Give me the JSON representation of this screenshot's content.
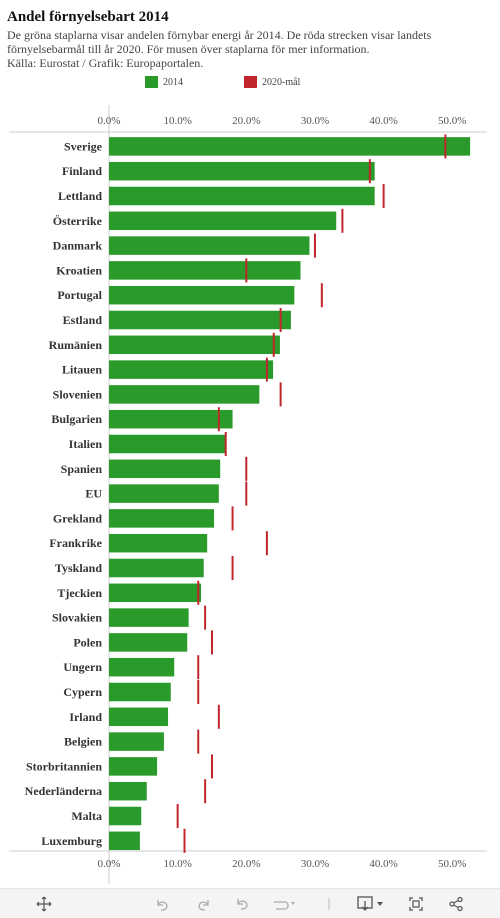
{
  "title": "Andel förnyelsebart 2014",
  "subtitle_lines": [
    "De gröna staplarna visar andelen förnybar energi år 2014. De röda strecken visar landets",
    "förnyelsebarmål till år 2020. För musen över staplarna för mer information.",
    "Källa: Eurostat / Grafik: Europaportalen."
  ],
  "colors": {
    "bar": "#2a9a2a",
    "target": "#c0262c",
    "axis": "#cccccc",
    "tick_text": "#555555",
    "label_text": "#333333"
  },
  "chart_data": {
    "type": "bar",
    "orientation": "horizontal",
    "xlim": [
      0,
      55
    ],
    "ticks": [
      0,
      10,
      20,
      30,
      40,
      50
    ],
    "tick_labels": [
      "0.0%",
      "10.0%",
      "20.0%",
      "30.0%",
      "40.0%",
      "50.0%"
    ],
    "legend_position": "top",
    "categories": [
      "Sverige",
      "Finland",
      "Lettland",
      "Österrike",
      "Danmark",
      "Kroatien",
      "Portugal",
      "Estland",
      "Rumänien",
      "Litauen",
      "Slovenien",
      "Bulgarien",
      "Italien",
      "Spanien",
      "EU",
      "Grekland",
      "Frankrike",
      "Tyskland",
      "Tjeckien",
      "Slovakien",
      "Polen",
      "Ungern",
      "Cypern",
      "Irland",
      "Belgien",
      "Storbritannien",
      "Nederländerna",
      "Malta",
      "Luxemburg"
    ],
    "series": [
      {
        "name": "2014",
        "kind": "bar",
        "values": [
          52.6,
          38.7,
          38.7,
          33.1,
          29.2,
          27.9,
          27.0,
          26.5,
          24.9,
          23.9,
          21.9,
          18.0,
          17.1,
          16.2,
          16.0,
          15.3,
          14.3,
          13.8,
          13.4,
          11.6,
          11.4,
          9.5,
          9.0,
          8.6,
          8.0,
          7.0,
          5.5,
          4.7,
          4.5
        ]
      },
      {
        "name": "2020-mål",
        "kind": "target",
        "values": [
          49,
          38,
          40,
          34,
          30,
          20,
          31,
          25,
          24,
          23,
          25,
          16,
          17,
          20,
          20,
          18,
          23,
          18,
          13,
          14,
          15,
          13,
          13,
          16,
          13,
          15,
          14,
          10,
          11
        ]
      }
    ]
  },
  "toolbar": {
    "icons": [
      "move-icon",
      "undo-icon",
      "redo-icon",
      "reset-icon",
      "redo-alt-icon",
      "download-icon",
      "fullscreen-icon",
      "share-icon"
    ]
  }
}
